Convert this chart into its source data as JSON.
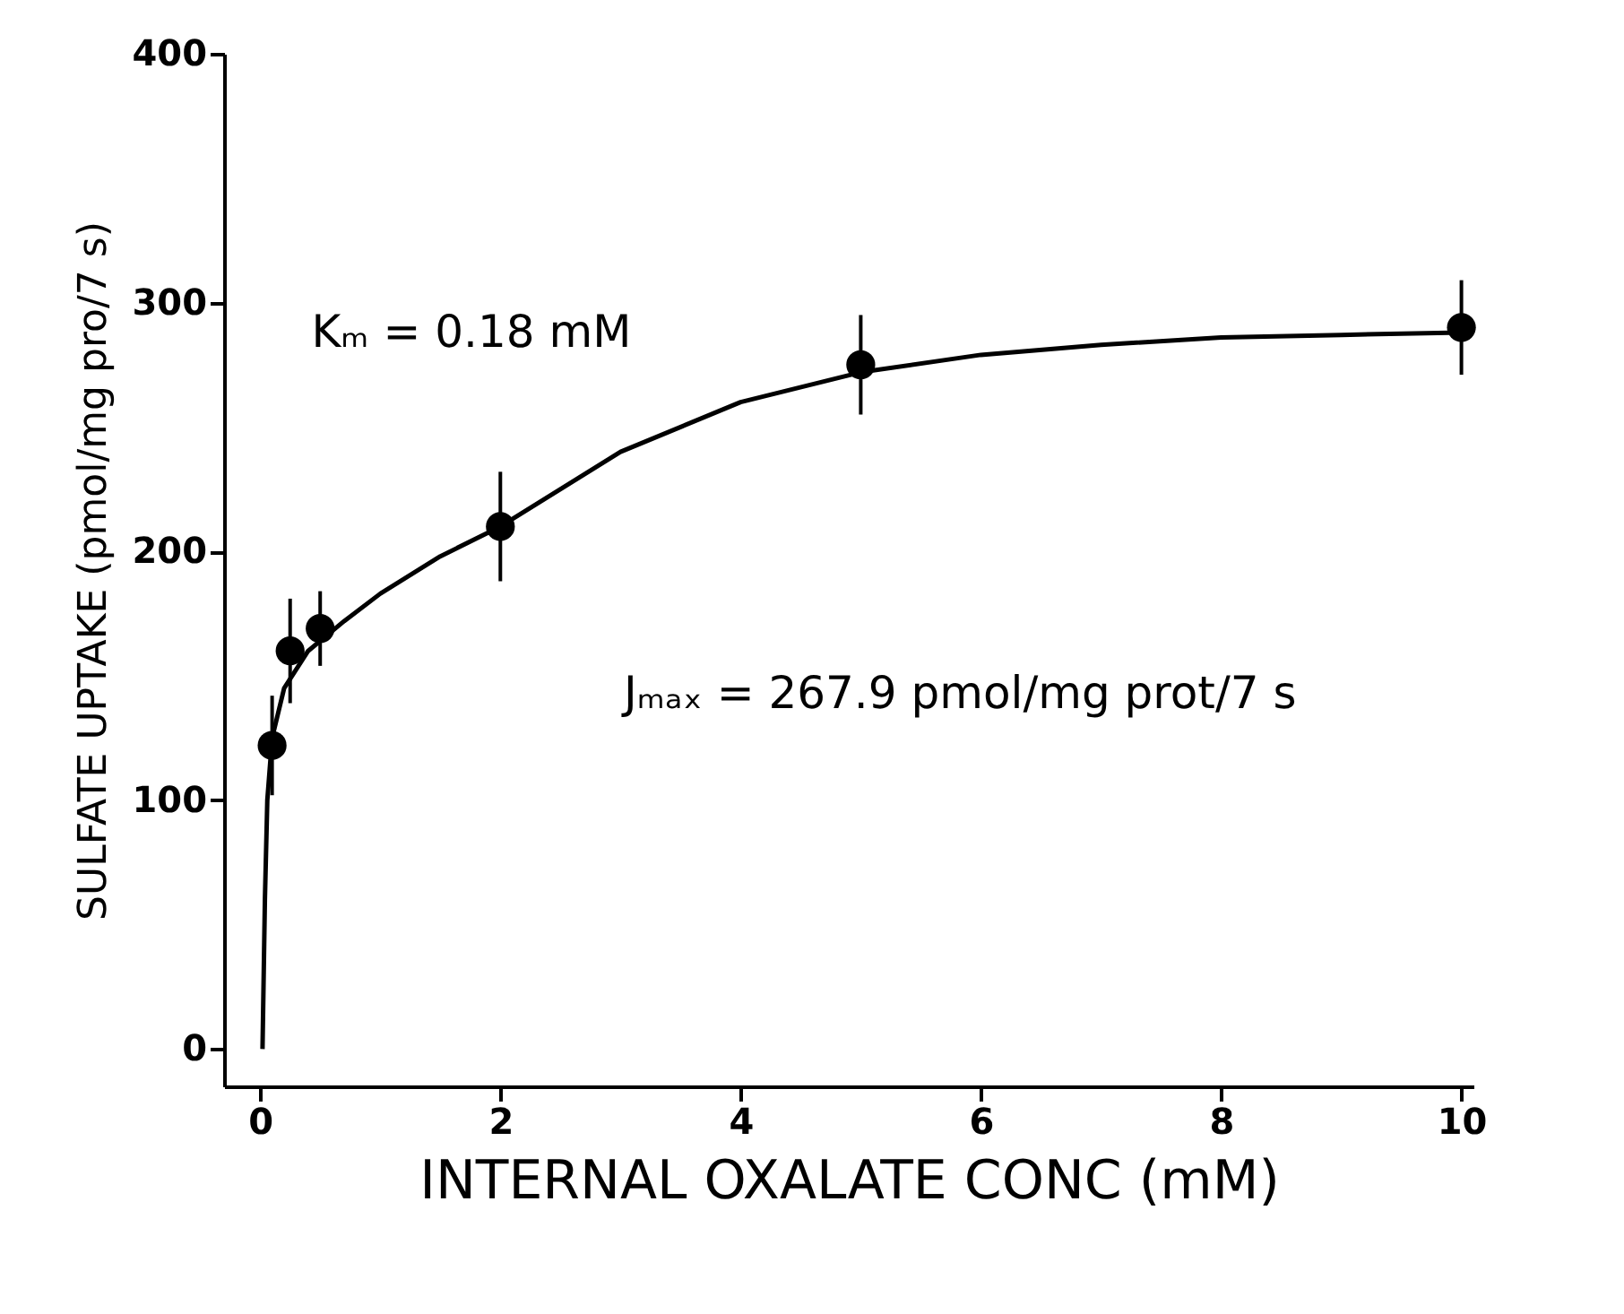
{
  "chart_data": {
    "type": "scatter",
    "xlabel": "INTERNAL OXALATE CONC (mM)",
    "ylabel": "SULFATE UPTAKE (pmol/mg pro/7 s)",
    "xlim": [
      -0.3,
      10.1
    ],
    "ylim": [
      -15,
      400
    ],
    "xticks": [
      0,
      2,
      4,
      6,
      8,
      10
    ],
    "yticks": [
      0,
      100,
      200,
      300,
      400
    ],
    "grid": false,
    "marker": "circle",
    "series": [
      {
        "color": "#000000",
        "x": [
          0.1,
          0.25,
          0.5,
          2,
          5,
          10
        ],
        "values": [
          122,
          160,
          169,
          210,
          275,
          290
        ],
        "errors": [
          20,
          21,
          15,
          22,
          20,
          19
        ]
      },
      {
        "type": "line",
        "color": "#000000",
        "marker": "none",
        "line_style": "solid",
        "x": [
          0.02,
          0.04,
          0.06,
          0.1,
          0.2,
          0.4,
          0.7,
          1,
          1.5,
          2,
          3,
          4,
          5,
          6,
          7,
          8,
          9,
          10
        ],
        "values": [
          0,
          60,
          100,
          125,
          145,
          160,
          172,
          183,
          198,
          210,
          240,
          260,
          272,
          279,
          283,
          286,
          287,
          288
        ]
      }
    ],
    "annotations": [
      "Kₘ = 0.18 mM",
      "Jₘₐₓ = 267.9 pmol/mg prot/7 s"
    ]
  }
}
